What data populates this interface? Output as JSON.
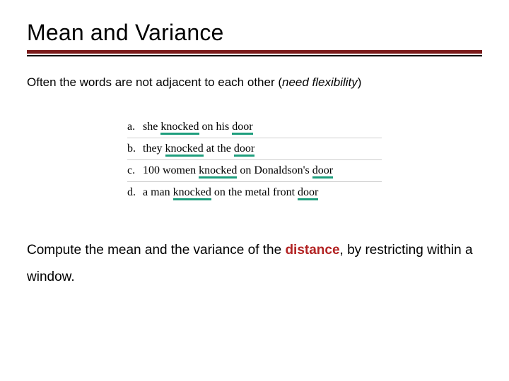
{
  "title": "Mean and Variance",
  "intro_prefix": "Often the words are not adjacent to each other (",
  "intro_italic": "need flexibility",
  "intro_suffix": ")",
  "rule_thick_color": "#7a1a1a",
  "rule_thin_color": "#000000",
  "highlight_color": "#1e9e7d",
  "examples": {
    "a": {
      "label": "a.",
      "w0": "she",
      "w1": "knocked",
      "w2": "on his",
      "w3": "door"
    },
    "b": {
      "label": "b.",
      "w0": "they",
      "w1": "knocked",
      "w2": "at the",
      "w3": "door"
    },
    "c": {
      "label": "c.",
      "w0": "100 women",
      "w1": "knocked",
      "w2": "on Donaldson's",
      "w3": "door"
    },
    "d": {
      "label": "d.",
      "w0": "a man",
      "w1": "knocked",
      "w2": "on the metal front",
      "w3": "door"
    }
  },
  "conclusion_prefix": "Compute the mean and the variance of the ",
  "conclusion_highlight": "distance",
  "conclusion_mid": ", by restricting within a window."
}
